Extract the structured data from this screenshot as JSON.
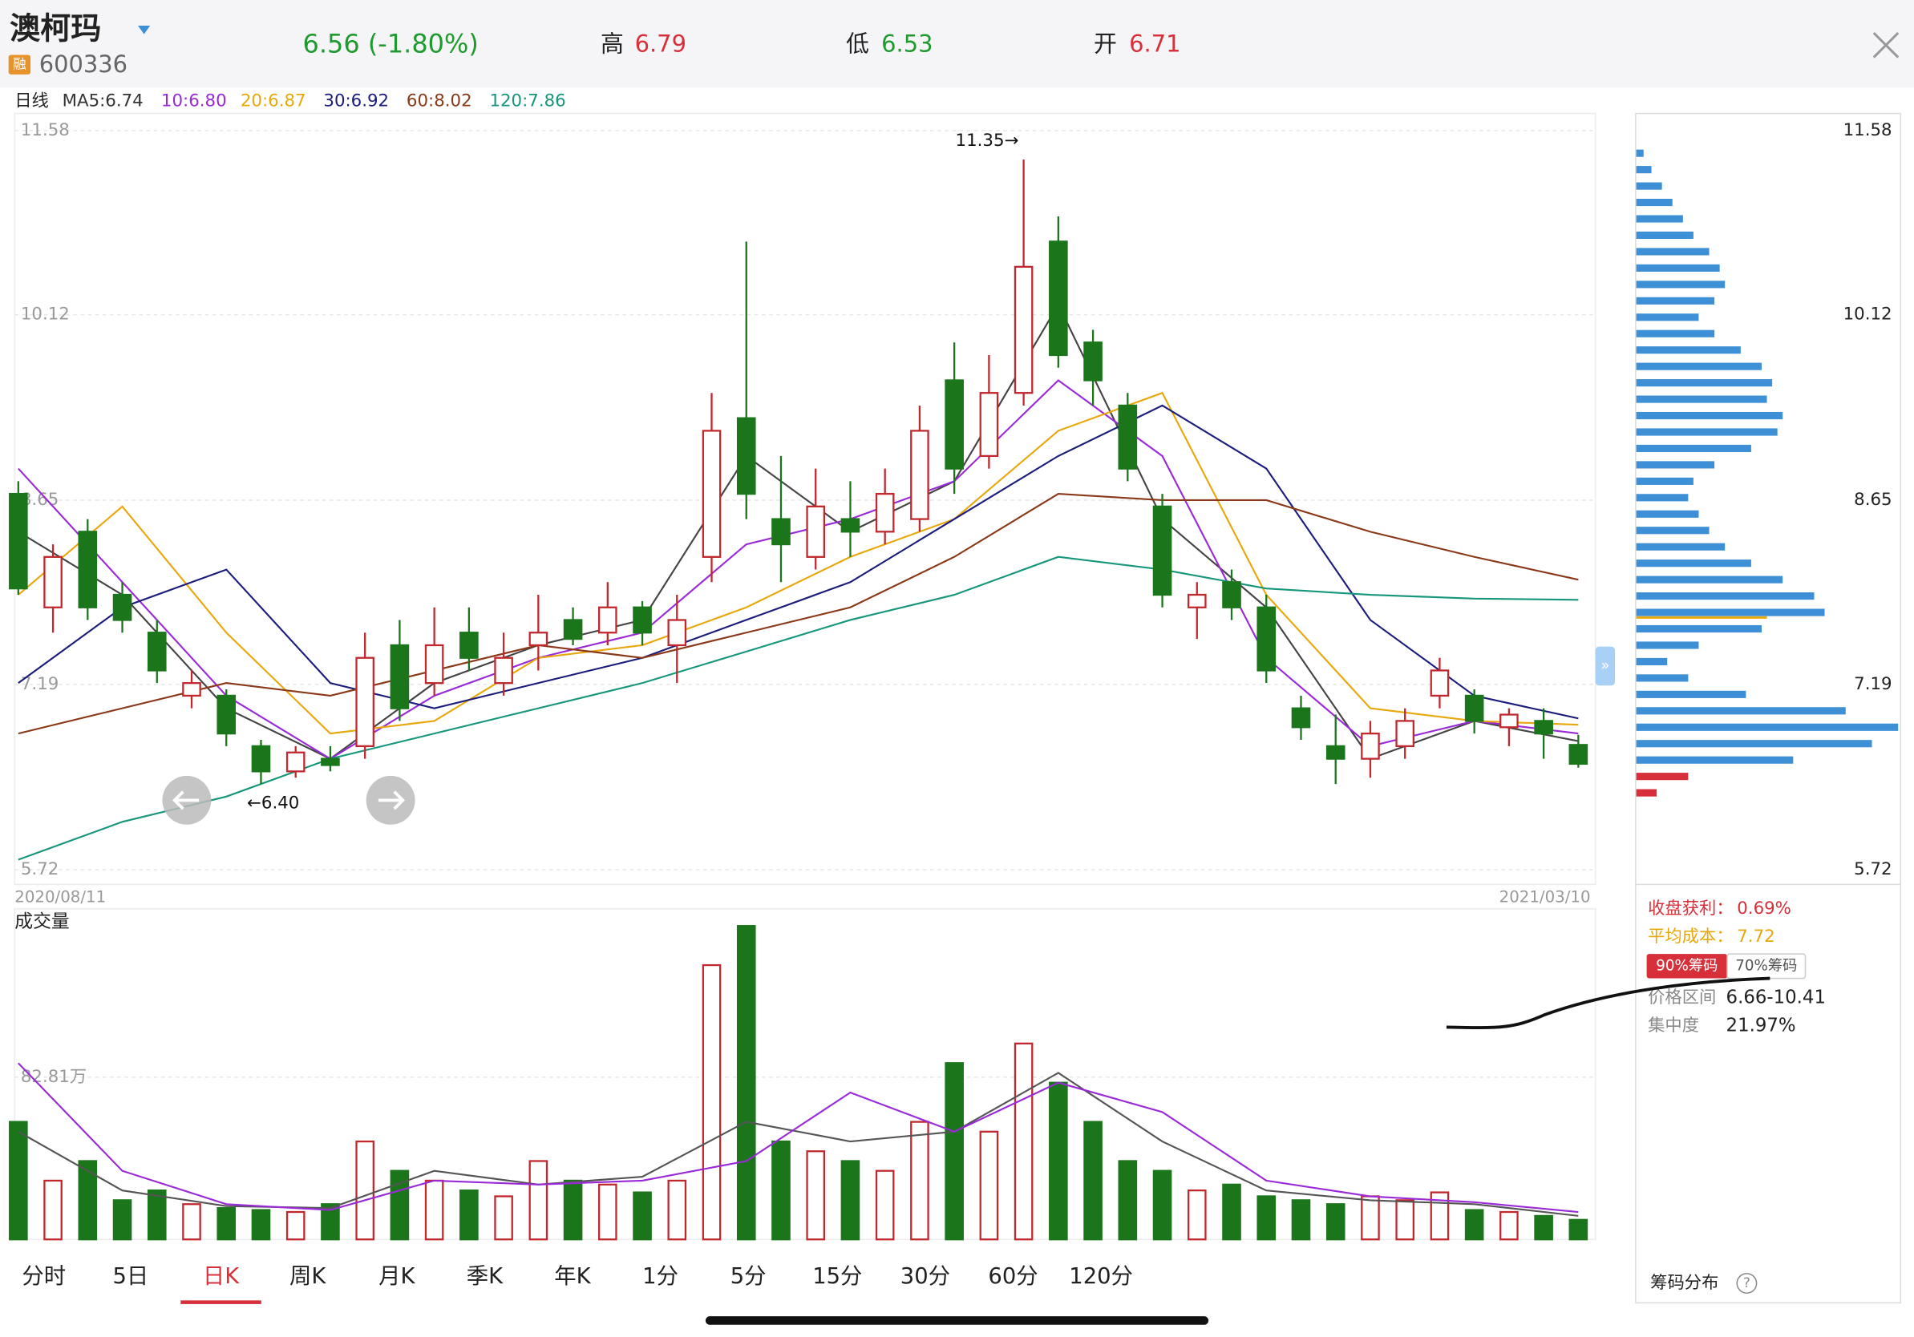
{
  "header": {
    "name": "澳柯玛",
    "badge": "融",
    "code": "600336",
    "price_change": "6.56 (-1.80%)",
    "high_label": "高",
    "high": 6.79,
    "low_label": "低",
    "low": 6.53,
    "open_label": "开",
    "open": 6.71
  },
  "ma_legend": {
    "period": "日线",
    "items": [
      {
        "text": "MA5:6.74",
        "color": "#333333"
      },
      {
        "text": "10:6.80",
        "color": "#9a2ad8"
      },
      {
        "text": "20:6.87",
        "color": "#e8a80c"
      },
      {
        "text": "30:6.92",
        "color": "#1c1c7c"
      },
      {
        "text": "60:8.02",
        "color": "#8a3818"
      },
      {
        "text": "120:7.86",
        "color": "#16967a"
      }
    ]
  },
  "chart_data": [
    {
      "type": "candlestick",
      "date_start": "2020/08/11",
      "date_end": "2021/03/10",
      "up_color": "#c0282d",
      "down_color": "#1b761b",
      "open": [
        8.7,
        7.8,
        8.4,
        7.9,
        7.6,
        7.1,
        7.1,
        6.7,
        6.5,
        6.6,
        6.7,
        7.5,
        7.2,
        7.6,
        7.2,
        7.5,
        7.7,
        7.6,
        7.8,
        7.5,
        8.2,
        9.3,
        8.5,
        8.2,
        8.5,
        8.4,
        8.5,
        9.6,
        9.0,
        9.5,
        10.7,
        9.9,
        9.4,
        8.6,
        7.8,
        8.0,
        7.8,
        7.0,
        6.7,
        6.6,
        6.7,
        7.1,
        7.1,
        6.85,
        6.9,
        6.71
      ],
      "high": [
        8.8,
        8.3,
        8.5,
        8.0,
        7.7,
        7.3,
        7.15,
        6.75,
        6.7,
        6.7,
        7.6,
        7.7,
        7.8,
        7.8,
        7.6,
        7.9,
        7.8,
        8.0,
        7.85,
        7.9,
        9.5,
        10.7,
        9.0,
        8.9,
        8.8,
        8.9,
        9.4,
        9.9,
        9.8,
        11.35,
        10.9,
        10.0,
        9.5,
        8.7,
        8.0,
        8.1,
        7.9,
        7.1,
        6.95,
        6.9,
        7.0,
        7.4,
        7.15,
        7.0,
        7.0,
        6.79
      ],
      "low": [
        7.9,
        7.6,
        7.7,
        7.6,
        7.2,
        7.0,
        6.7,
        6.4,
        6.45,
        6.5,
        6.6,
        6.9,
        7.1,
        7.3,
        7.1,
        7.3,
        7.5,
        7.5,
        7.5,
        7.2,
        8.0,
        8.5,
        8.0,
        8.1,
        8.2,
        8.3,
        8.4,
        8.7,
        8.9,
        9.4,
        9.7,
        9.4,
        8.8,
        7.8,
        7.55,
        7.7,
        7.2,
        6.75,
        6.4,
        6.45,
        6.6,
        7.0,
        6.8,
        6.7,
        6.6,
        6.53
      ],
      "close": [
        7.95,
        8.2,
        7.8,
        7.7,
        7.3,
        7.2,
        6.8,
        6.5,
        6.65,
        6.55,
        7.4,
        7.0,
        7.5,
        7.4,
        7.4,
        7.6,
        7.55,
        7.8,
        7.6,
        7.7,
        9.2,
        8.7,
        8.3,
        8.6,
        8.4,
        8.7,
        9.2,
        8.9,
        9.5,
        10.5,
        9.8,
        9.6,
        8.9,
        7.9,
        7.9,
        7.8,
        7.3,
        6.85,
        6.6,
        6.8,
        6.9,
        7.3,
        6.9,
        6.95,
        6.8,
        6.56
      ],
      "ylim": [
        5.72,
        11.58
      ],
      "yticks": [
        5.72,
        7.19,
        8.65,
        10.12,
        11.58
      ],
      "annotations": [
        {
          "text": "11.35→",
          "index": 29
        },
        {
          "text": "←6.40",
          "index": 7
        }
      ],
      "ma_series": [
        {
          "color": "#444444",
          "x": [
            0,
            3,
            6,
            9,
            12,
            15,
            18,
            21,
            24,
            27,
            30,
            33,
            36,
            39,
            42,
            45
          ],
          "values": [
            8.4,
            7.9,
            7.0,
            6.6,
            7.2,
            7.5,
            7.7,
            9.0,
            8.4,
            8.8,
            10.2,
            8.5,
            7.8,
            6.6,
            6.9,
            6.74
          ]
        },
        {
          "color": "#9a2ad8",
          "x": [
            0,
            3,
            6,
            9,
            12,
            15,
            18,
            21,
            24,
            27,
            30,
            33,
            36,
            39,
            42,
            45
          ],
          "values": [
            8.9,
            8.0,
            7.1,
            6.6,
            7.1,
            7.4,
            7.6,
            8.3,
            8.5,
            8.8,
            9.6,
            9.0,
            7.4,
            6.7,
            6.9,
            6.8
          ]
        },
        {
          "color": "#e8a80c",
          "x": [
            0,
            3,
            6,
            9,
            12,
            15,
            18,
            21,
            24,
            27,
            30,
            33,
            36,
            39,
            42,
            45
          ],
          "values": [
            7.9,
            8.6,
            7.6,
            6.8,
            6.9,
            7.4,
            7.5,
            7.8,
            8.2,
            8.5,
            9.2,
            9.5,
            7.9,
            7.0,
            6.9,
            6.87
          ]
        },
        {
          "color": "#1c1c7c",
          "x": [
            0,
            3,
            6,
            9,
            12,
            15,
            18,
            21,
            24,
            27,
            30,
            33,
            36,
            39,
            42,
            45
          ],
          "values": [
            7.2,
            7.8,
            8.1,
            7.2,
            7.0,
            7.2,
            7.4,
            7.7,
            8.0,
            8.5,
            9.0,
            9.4,
            8.9,
            7.7,
            7.1,
            6.92
          ]
        },
        {
          "color": "#8a3818",
          "x": [
            0,
            3,
            6,
            9,
            12,
            15,
            18,
            21,
            24,
            27,
            30,
            33,
            36,
            39,
            42,
            45
          ],
          "values": [
            6.8,
            7.0,
            7.2,
            7.1,
            7.3,
            7.5,
            7.4,
            7.6,
            7.8,
            8.2,
            8.7,
            8.65,
            8.65,
            8.4,
            8.2,
            8.02
          ]
        },
        {
          "color": "#16967a",
          "x": [
            0,
            3,
            6,
            9,
            12,
            15,
            18,
            21,
            24,
            27,
            30,
            33,
            36,
            39,
            42,
            45
          ],
          "values": [
            5.8,
            6.1,
            6.3,
            6.6,
            6.8,
            7.0,
            7.2,
            7.45,
            7.7,
            7.9,
            8.2,
            8.1,
            7.95,
            7.9,
            7.87,
            7.86
          ]
        }
      ]
    },
    {
      "type": "bar",
      "title": "成交量",
      "values": [
        60,
        30,
        40,
        20,
        25,
        18,
        16,
        15,
        14,
        18,
        50,
        35,
        30,
        25,
        22,
        40,
        30,
        28,
        24,
        30,
        140,
        160,
        50,
        45,
        40,
        35,
        60,
        90,
        55,
        100,
        80,
        60,
        40,
        35,
        25,
        28,
        22,
        20,
        18,
        22,
        20,
        24,
        15,
        14,
        12,
        10
      ],
      "ylim": [
        0,
        167.5
      ],
      "yticks": [
        {
          "value": 82.81,
          "label": "82.81万"
        }
      ],
      "ma_series": [
        {
          "color": "#555555",
          "x": [
            0,
            3,
            6,
            9,
            12,
            15,
            18,
            21,
            24,
            27,
            30,
            33,
            36,
            39,
            42,
            45
          ],
          "values": [
            55,
            25,
            17,
            16,
            35,
            28,
            32,
            60,
            50,
            55,
            85,
            50,
            25,
            20,
            18,
            12
          ]
        },
        {
          "color": "#9a2ad8",
          "x": [
            0,
            3,
            6,
            9,
            12,
            15,
            18,
            21,
            24,
            27,
            30,
            33,
            36,
            39,
            42,
            45
          ],
          "values": [
            90,
            35,
            18,
            15,
            30,
            28,
            30,
            40,
            75,
            55,
            80,
            65,
            30,
            22,
            19,
            14
          ]
        }
      ]
    },
    {
      "type": "chip",
      "prices": [
        11.4,
        11.27,
        11.14,
        11.01,
        10.88,
        10.75,
        10.62,
        10.49,
        10.36,
        10.23,
        10.1,
        9.97,
        9.84,
        9.71,
        9.58,
        9.45,
        9.32,
        9.19,
        9.06,
        8.93,
        8.8,
        8.67,
        8.54,
        8.41,
        8.28,
        8.15,
        8.02,
        7.89,
        7.76,
        7.63,
        7.5,
        7.37,
        7.24,
        7.11,
        6.98,
        6.85,
        6.72,
        6.59,
        6.46,
        6.33
      ],
      "values": [
        3,
        6,
        10,
        14,
        18,
        22,
        28,
        32,
        34,
        30,
        24,
        30,
        40,
        48,
        52,
        50,
        56,
        54,
        44,
        30,
        22,
        20,
        24,
        28,
        34,
        44,
        56,
        68,
        72,
        48,
        24,
        12,
        20,
        42,
        80,
        100,
        90,
        60,
        20,
        8
      ],
      "xlim": [
        0,
        100
      ],
      "ylim": [
        5.72,
        11.58
      ],
      "yticks": [
        5.72,
        7.19,
        8.65,
        10.12,
        11.58
      ],
      "avg_cost": 7.72,
      "avg_color": "#e8a80c",
      "profit_color": "#d8303a",
      "loss_color": "#3d8fd6"
    }
  ],
  "chip_panel": {
    "profit_label": "收盘获利：",
    "profit": "0.69%",
    "avg_label": "平均成本：",
    "badge_90": "90%筹码",
    "badge_70": "70%筹码",
    "range_label": "价格区间",
    "range": "6.66-10.41",
    "conc_label": "集中度",
    "conc": "21.97%",
    "footer": "筹码分布"
  },
  "tabs": [
    "分时",
    "5日",
    "日K",
    "周K",
    "月K",
    "季K",
    "年K",
    "1分",
    "5分",
    "15分",
    "30分",
    "60分",
    "120分"
  ],
  "active_tab": 2
}
